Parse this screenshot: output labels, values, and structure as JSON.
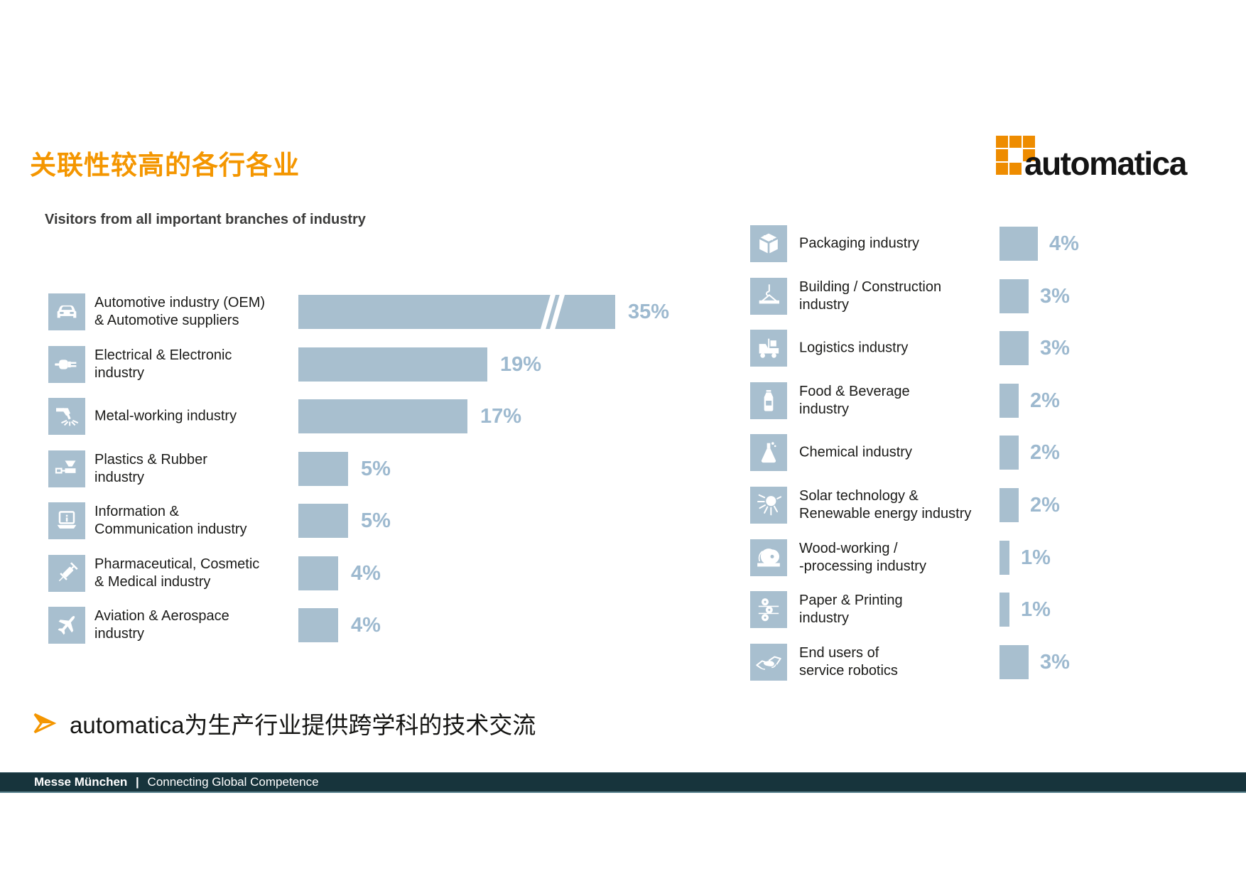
{
  "slide": {
    "title": "关联性较高的各行各业",
    "logo_text": "automatica",
    "subtitle": "Visitors from all important branches of industry",
    "bullet_text": "automatica为生产行业提供跨学科的技术交流",
    "footer": {
      "brand": "Messe München",
      "separator": "|",
      "tagline": "Connecting Global Competence"
    }
  },
  "colors": {
    "accent_orange": "#F49600",
    "logo_orange": "#EE8C00",
    "bar_fill": "#A8BFCF",
    "value_label": "#9DB9CF",
    "footer_bg": "#17343C"
  },
  "chart_data": [
    {
      "type": "bar",
      "orientation": "horizontal",
      "group": "left",
      "title": "Visitors from all important branches of industry",
      "unit": "%",
      "note": "longest bar drawn with axis break",
      "items": [
        {
          "label": "Automotive industry (OEM)\n& Automotive suppliers",
          "icon": "car",
          "value": 35,
          "display": "35%",
          "broken_bar": true
        },
        {
          "label": "Electrical & Electronic\nindustry",
          "icon": "plug",
          "value": 19,
          "display": "19%"
        },
        {
          "label": "Metal-working industry",
          "icon": "laser",
          "value": 17,
          "display": "17%"
        },
        {
          "label": "Plastics & Rubber\nindustry",
          "icon": "molding",
          "value": 5,
          "display": "5%"
        },
        {
          "label": "Information &\nCommunication industry",
          "icon": "laptop",
          "value": 5,
          "display": "5%"
        },
        {
          "label": "Pharmaceutical, Cosmetic\n& Medical industry",
          "icon": "syringe",
          "value": 4,
          "display": "4%"
        },
        {
          "label": "Aviation & Aerospace\nindustry",
          "icon": "airplane",
          "value": 4,
          "display": "4%"
        }
      ]
    },
    {
      "type": "bar",
      "orientation": "horizontal",
      "group": "right",
      "unit": "%",
      "items": [
        {
          "label": "Packaging industry",
          "icon": "package",
          "value": 4,
          "display": "4%"
        },
        {
          "label": "Building / Construction\nindustry",
          "icon": "crane",
          "value": 3,
          "display": "3%"
        },
        {
          "label": "Logistics industry",
          "icon": "forklift",
          "value": 3,
          "display": "3%"
        },
        {
          "label": "Food & Beverage\nindustry",
          "icon": "bottle",
          "value": 2,
          "display": "2%"
        },
        {
          "label": "Chemical industry",
          "icon": "flask",
          "value": 2,
          "display": "2%"
        },
        {
          "label": "Solar technology &\nRenewable energy industry",
          "icon": "sun",
          "value": 2,
          "display": "2%"
        },
        {
          "label": "Wood-working /\n-processing industry",
          "icon": "saw",
          "value": 1,
          "display": "1%"
        },
        {
          "label": "Paper & Printing\nindustry",
          "icon": "rollers",
          "value": 1,
          "display": "1%"
        },
        {
          "label": "End users of\nservice robotics",
          "icon": "handshake",
          "value": 3,
          "display": "3%"
        }
      ]
    }
  ]
}
